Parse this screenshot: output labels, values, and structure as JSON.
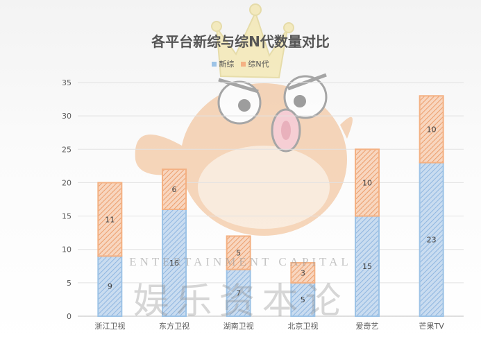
{
  "chart_data": {
    "type": "bar",
    "stacked": true,
    "title": "各平台新综与综N代数量对比",
    "categories": [
      "浙江卫视",
      "东方卫视",
      "湖南卫视",
      "北京卫视",
      "爱奇艺",
      "芒果TV"
    ],
    "series": [
      {
        "name": "新综",
        "values": [
          9,
          16,
          7,
          5,
          15,
          23
        ],
        "color": "#9dc3e6"
      },
      {
        "name": "综N代",
        "values": [
          11,
          6,
          5,
          3,
          10,
          10
        ],
        "color": "#f4b183"
      }
    ],
    "ylim": [
      0,
      35
    ],
    "yticks": [
      0,
      5,
      10,
      15,
      20,
      25,
      30,
      35
    ],
    "grid": true,
    "legend_position": "top"
  },
  "watermark": {
    "en": "ENTERTAINMENT CAPITAL",
    "cn": "娱乐资本论",
    "logo_icon": "crowned-pufferfish-mascot"
  }
}
